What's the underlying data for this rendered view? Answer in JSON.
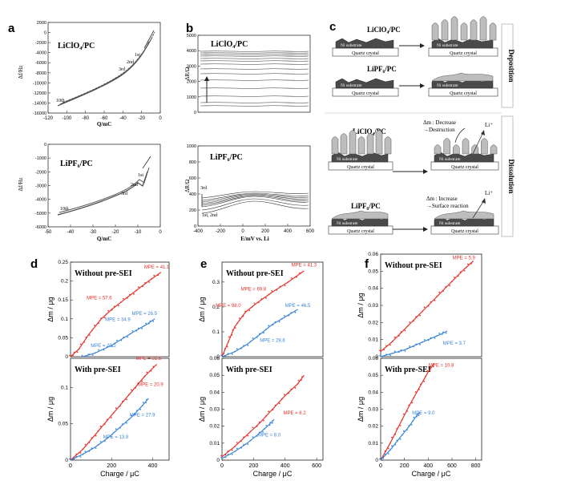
{
  "figure": {
    "letters": {
      "a": "a",
      "b": "b",
      "c": "c",
      "d": "d",
      "e": "e",
      "f": "f"
    }
  },
  "panel_a": {
    "top": {
      "label": "LiClO₄/PC",
      "ylabel": "Δf/Hz",
      "xlabel": "Q/mC",
      "yticks": [
        "2000",
        "0",
        "-2000",
        "-4000",
        "-6000",
        "-8000",
        "-10000",
        "-12000",
        "-14000",
        "-16000"
      ],
      "xticks": [
        "-120",
        "-100",
        "-80",
        "-60",
        "-40",
        "-20",
        "0"
      ],
      "cycles": [
        "1st",
        "2nd",
        "3rd",
        "10th"
      ]
    },
    "bottom": {
      "label": "LiPF₆/PC",
      "ylabel": "Δf/Hz",
      "xlabel": "Q/mC",
      "yticks": [
        "0",
        "-1000",
        "-2000",
        "-3000",
        "-4000",
        "-5000",
        "-6000"
      ],
      "xticks": [
        "-50",
        "-40",
        "-30",
        "-20",
        "-10",
        "0"
      ],
      "cycles": [
        "1st",
        "2nd",
        "3rd",
        "10th"
      ]
    }
  },
  "panel_b": {
    "top": {
      "label": "LiClO₄/PC",
      "ylabel": "ΔR/Ω",
      "yticks": [
        "5000",
        "4000",
        "3000",
        "2000",
        "1000",
        "0"
      ]
    },
    "bottom": {
      "label": "LiPF₆/PC",
      "ylabel": "ΔR/Ω",
      "xlabel": "E/mV vs. Li",
      "yticks": [
        "1000",
        "800",
        "600",
        "400",
        "200",
        "0"
      ],
      "xticks": [
        "-400",
        "-200",
        "0",
        "200",
        "400",
        "600"
      ],
      "ann_3rd": "3rd",
      "ann_12": "1st, 2nd"
    }
  },
  "panel_c": {
    "deposition_label": "Deposition",
    "dissolution_label": "Dissolution",
    "ni": "Ni substrate",
    "quartz": "Quartz crystal",
    "row1": "LiClO₄/PC",
    "row2": "LiPF₆/PC",
    "row3": "LiClO₄/PC",
    "row4": "LiPF₆/PC",
    "ann3_line1": "Δm : Decrease",
    "ann3_line2": "→Destruction",
    "ann4_line1": "Δm : Increase",
    "ann4_line2": "→Surface reaction",
    "li": "Li⁺"
  },
  "colors": {
    "red": "#e8322c",
    "blue": "#3a86d6"
  },
  "chart_data": [
    {
      "panel": "d-top",
      "type": "scatter",
      "title": "Without pre-SEI",
      "xlabel": "",
      "ylabel": "Δm / μg",
      "xlim": [
        0,
        480
      ],
      "ylim": [
        0,
        0.25
      ],
      "yticks": [
        "0",
        "0.05",
        "0.1",
        "0.15",
        "0.2",
        "0.25"
      ],
      "series": [
        {
          "color": "red",
          "points": [
            [
              0,
              0
            ],
            [
              40,
              0.02
            ],
            [
              90,
              0.06
            ],
            [
              150,
              0.1
            ],
            [
              200,
              0.125
            ],
            [
              260,
              0.15
            ],
            [
              320,
              0.175
            ],
            [
              380,
              0.2
            ],
            [
              440,
              0.223
            ]
          ]
        },
        {
          "color": "blue",
          "points": [
            [
              60,
              0.0
            ],
            [
              120,
              0.01
            ],
            [
              200,
              0.03
            ],
            [
              260,
              0.05
            ],
            [
              320,
              0.07
            ],
            [
              370,
              0.085
            ],
            [
              410,
              0.1
            ]
          ]
        }
      ],
      "mpe": [
        {
          "text": "MPE = 41.1",
          "color": "red",
          "x": 420,
          "y": 0.233
        },
        {
          "text": "MPE = 57.6",
          "color": "red",
          "x": 140,
          "y": 0.152
        },
        {
          "text": "MPE = 34.9",
          "color": "blue",
          "x": 230,
          "y": 0.094
        },
        {
          "text": "MPE = 26.5",
          "color": "blue",
          "x": 360,
          "y": 0.11
        },
        {
          "text": "MPE = 20.2",
          "color": "blue",
          "x": 160,
          "y": 0.025
        }
      ]
    },
    {
      "panel": "d-bottom",
      "type": "scatter",
      "title": "With pre-SEI",
      "xlabel": "Charge / μC",
      "ylabel": "Δm / μg",
      "xlim": [
        0,
        480
      ],
      "ylim": [
        0,
        0.14
      ],
      "xticks": [
        "0",
        "200",
        "400"
      ],
      "yticks": [
        "0",
        "0.05",
        "0.1"
      ],
      "series": [
        {
          "color": "red",
          "points": [
            [
              0,
              0
            ],
            [
              60,
              0.015
            ],
            [
              120,
              0.035
            ],
            [
              180,
              0.055
            ],
            [
              240,
              0.075
            ],
            [
              300,
              0.095
            ],
            [
              360,
              0.115
            ],
            [
              420,
              0.132
            ]
          ]
        },
        {
          "color": "blue",
          "points": [
            [
              0,
              0
            ],
            [
              60,
              0.008
            ],
            [
              120,
              0.018
            ],
            [
              180,
              0.03
            ],
            [
              240,
              0.045
            ],
            [
              300,
              0.06
            ],
            [
              350,
              0.075
            ],
            [
              380,
              0.085
            ]
          ]
        }
      ],
      "mpe": [
        {
          "text": "MPE = 31.5",
          "color": "red",
          "x": 380,
          "y": 0.138
        },
        {
          "text": "MPE = 20.9",
          "color": "red",
          "x": 390,
          "y": 0.102
        },
        {
          "text": "MPE = 27.9",
          "color": "blue",
          "x": 350,
          "y": 0.06
        },
        {
          "text": "MPE = 13.9",
          "color": "blue",
          "x": 220,
          "y": 0.03
        }
      ]
    },
    {
      "panel": "e-top",
      "type": "scatter",
      "title": "Without pre-SEI",
      "xlabel": "",
      "ylabel": "Δm / μg",
      "xlim": [
        0,
        640
      ],
      "ylim": [
        0,
        0.38
      ],
      "yticks": [
        "0",
        "0.1",
        "0.2",
        "0.3"
      ],
      "series": [
        {
          "color": "red",
          "points": [
            [
              0,
              0
            ],
            [
              40,
              0.06
            ],
            [
              80,
              0.12
            ],
            [
              150,
              0.18
            ],
            [
              230,
              0.22
            ],
            [
              320,
              0.26
            ],
            [
              420,
              0.3
            ],
            [
              520,
              0.345
            ]
          ]
        },
        {
          "color": "blue",
          "points": [
            [
              0,
              0
            ],
            [
              80,
              0.02
            ],
            [
              160,
              0.05
            ],
            [
              240,
              0.09
            ],
            [
              320,
              0.13
            ],
            [
              400,
              0.16
            ],
            [
              480,
              0.19
            ]
          ]
        }
      ],
      "mpe": [
        {
          "text": "MPE = 41.3",
          "color": "red",
          "x": 520,
          "y": 0.362
        },
        {
          "text": "MPE = 69.8",
          "color": "red",
          "x": 200,
          "y": 0.265
        },
        {
          "text": "MPE = 98.0",
          "color": "red",
          "x": 40,
          "y": 0.2
        },
        {
          "text": "MPE = 46.5",
          "color": "blue",
          "x": 480,
          "y": 0.2
        },
        {
          "text": "MPE = 29.6",
          "color": "blue",
          "x": 320,
          "y": 0.06
        }
      ]
    },
    {
      "panel": "e-bottom",
      "type": "scatter",
      "title": "With pre-SEI",
      "xlabel": "Charge / μC",
      "ylabel": "Δm / μg",
      "xlim": [
        0,
        640
      ],
      "ylim": [
        0,
        0.06
      ],
      "xticks": [
        "0",
        "200",
        "400",
        "600"
      ],
      "yticks": [
        "0",
        "0.01",
        "0.02",
        "0.03",
        "0.04",
        "0.05",
        "0.06"
      ],
      "series": [
        {
          "color": "red",
          "points": [
            [
              0,
              0.002
            ],
            [
              80,
              0.008
            ],
            [
              160,
              0.015
            ],
            [
              240,
              0.022
            ],
            [
              320,
              0.03
            ],
            [
              400,
              0.038
            ],
            [
              480,
              0.045
            ],
            [
              520,
              0.05
            ]
          ]
        },
        {
          "color": "blue",
          "points": [
            [
              0,
              0.001
            ],
            [
              80,
              0.005
            ],
            [
              160,
              0.01
            ],
            [
              240,
              0.016
            ],
            [
              300,
              0.021
            ],
            [
              330,
              0.024
            ]
          ]
        }
      ],
      "mpe": [
        {
          "text": "MPE = 8.2",
          "color": "red",
          "x": 460,
          "y": 0.027
        },
        {
          "text": "MPE = 8.0",
          "color": "blue",
          "x": 300,
          "y": 0.014
        }
      ]
    },
    {
      "panel": "f-top",
      "type": "scatter",
      "title": "Without pre-SEI",
      "xlabel": "",
      "ylabel": "Δm / μg",
      "xlim": [
        0,
        850
      ],
      "ylim": [
        0,
        0.06
      ],
      "yticks": [
        "0",
        "0.01",
        "0.02",
        "0.03",
        "0.04",
        "0.05",
        "0.06"
      ],
      "series": [
        {
          "color": "red",
          "points": [
            [
              0,
              0.003
            ],
            [
              100,
              0.009
            ],
            [
              200,
              0.016
            ],
            [
              300,
              0.023
            ],
            [
              400,
              0.03
            ],
            [
              500,
              0.037
            ],
            [
              600,
              0.044
            ],
            [
              700,
              0.051
            ],
            [
              780,
              0.056
            ]
          ]
        },
        {
          "color": "blue",
          "points": [
            [
              0,
              0
            ],
            [
              100,
              0.002
            ],
            [
              200,
              0.004
            ],
            [
              300,
              0.007
            ],
            [
              400,
              0.01
            ],
            [
              500,
              0.013
            ],
            [
              560,
              0.015
            ]
          ]
        }
      ],
      "mpe": [
        {
          "text": "MPE = 5.9",
          "color": "red",
          "x": 700,
          "y": 0.057
        },
        {
          "text": "MPE = 3.7",
          "color": "blue",
          "x": 620,
          "y": 0.007
        }
      ]
    },
    {
      "panel": "f-bottom",
      "type": "scatter",
      "title": "With pre-SEI",
      "xlabel": "Charge / μC",
      "ylabel": "Δm / μg",
      "xlim": [
        0,
        850
      ],
      "ylim": [
        0,
        0.06
      ],
      "xticks": [
        "0",
        "200",
        "400",
        "600",
        "800"
      ],
      "yticks": [
        "0",
        "0.01",
        "0.02",
        "0.03",
        "0.04",
        "0.05",
        "0.06"
      ],
      "series": [
        {
          "color": "red",
          "points": [
            [
              0,
              0
            ],
            [
              80,
              0.01
            ],
            [
              160,
              0.021
            ],
            [
              240,
              0.032
            ],
            [
              320,
              0.042
            ],
            [
              400,
              0.052
            ],
            [
              450,
              0.057
            ]
          ]
        },
        {
          "color": "blue",
          "points": [
            [
              0,
              0
            ],
            [
              80,
              0.006
            ],
            [
              160,
              0.013
            ],
            [
              240,
              0.02
            ],
            [
              300,
              0.026
            ],
            [
              330,
              0.028
            ]
          ]
        }
      ],
      "mpe": [
        {
          "text": "MPE = 10.8",
          "color": "red",
          "x": 510,
          "y": 0.055
        },
        {
          "text": "MPE = 9.0",
          "color": "blue",
          "x": 360,
          "y": 0.027
        }
      ]
    }
  ]
}
